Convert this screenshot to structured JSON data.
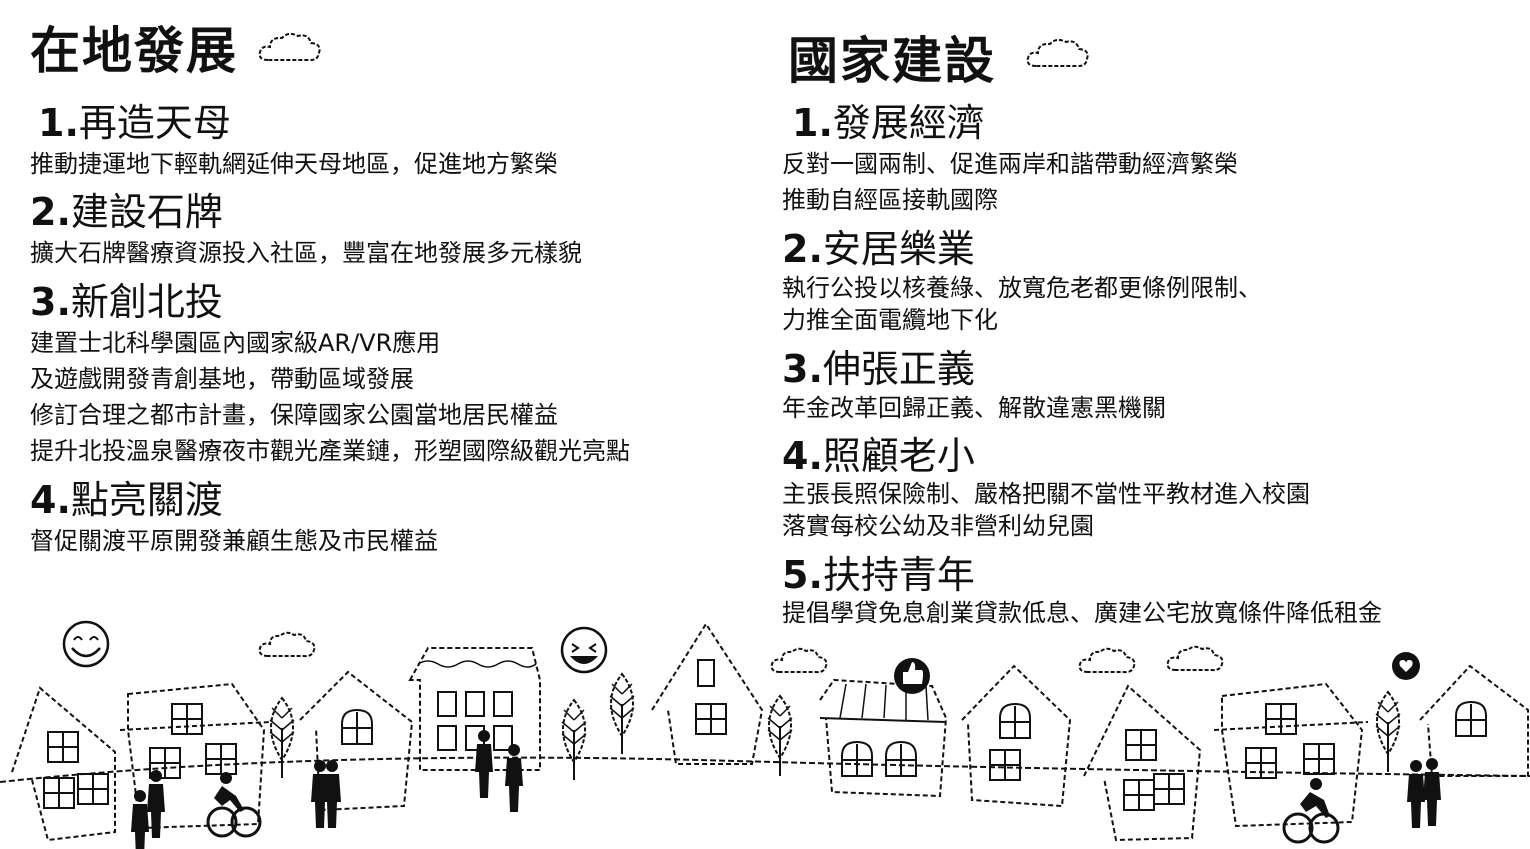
{
  "left": {
    "title": "在地發展",
    "cloud_icon": "cloud-icon",
    "items": [
      {
        "num": "1.",
        "title": "再造天母",
        "lines": [
          "推動捷運地下輕軌網延伸天母地區，促進地方繁榮"
        ]
      },
      {
        "num": "2.",
        "title": "建設石牌",
        "lines": [
          "擴大石牌醫療資源投入社區，豐富在地發展多元樣貌"
        ]
      },
      {
        "num": "3.",
        "title": "新創北投",
        "lines": [
          "建置士北科學園區內國家級AR/VR應用",
          "及遊戲開發青創基地，帶動區域發展",
          "修訂合理之都市計畫，保障國家公園當地居民權益",
          "提升北投溫泉醫療夜市觀光產業鏈，形塑國際級觀光亮點"
        ]
      },
      {
        "num": "4.",
        "title": "點亮關渡",
        "lines": [
          "督促關渡平原開發兼顧生態及市民權益"
        ]
      }
    ]
  },
  "right": {
    "title": "國家建設",
    "cloud_icon": "cloud-icon",
    "items": [
      {
        "num": "1.",
        "title": "發展經濟",
        "lines": [
          "反對一國兩制、促進兩岸和諧帶動經濟繁榮",
          "推動自經區接軌國際"
        ]
      },
      {
        "num": "2.",
        "title": "安居樂業",
        "lines": [
          "執行公投以核養綠、放寬危老都更條例限制、",
          "力推全面電纜地下化"
        ]
      },
      {
        "num": "3.",
        "title": "伸張正義",
        "lines": [
          "年金改革回歸正義、解散違憲黑機關"
        ]
      },
      {
        "num": "4.",
        "title": "照顧老小",
        "lines": [
          "主張長照保險制、嚴格把關不當性平教材進入校園",
          "落實每校公幼及非營利幼兒園"
        ]
      },
      {
        "num": "5.",
        "title": "扶持青年",
        "lines": [
          "提倡學貸免息創業貸款低息、廣建公宅放寬條件降低租金"
        ]
      }
    ]
  },
  "illustration": {
    "name": "town-illustration",
    "icons": [
      "smile-face-icon",
      "laughing-face-icon",
      "thumbs-up-icon",
      "heart-icon",
      "house-icon",
      "tree-icon",
      "cloud-icon",
      "pedestrian-icon",
      "cyclist-icon"
    ]
  }
}
